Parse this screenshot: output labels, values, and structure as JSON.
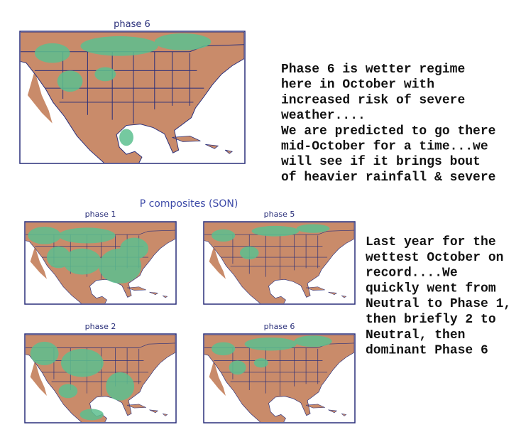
{
  "top_map": {
    "title": "phase 6"
  },
  "top_note": {
    "lines": [
      "Phase 6 is wetter regime",
      "here in October with",
      "increased risk of severe",
      "weather....",
      "We are predicted to go there",
      "mid-October for a time...we",
      "will see if it brings bout",
      "of heavier rainfall & severe"
    ]
  },
  "composites": {
    "title": "P composites (SON)",
    "maps": [
      {
        "title": "phase 1"
      },
      {
        "title": "phase 5"
      },
      {
        "title": "phase 2"
      },
      {
        "title": "phase 6"
      }
    ]
  },
  "bottom_note": {
    "lines": [
      "Last year for the",
      "wettest October on",
      "record....We",
      "quickly went from",
      "Neutral to Phase 1,",
      "then briefly 2 to",
      "Neutral, then",
      "dominant Phase 6"
    ]
  }
}
